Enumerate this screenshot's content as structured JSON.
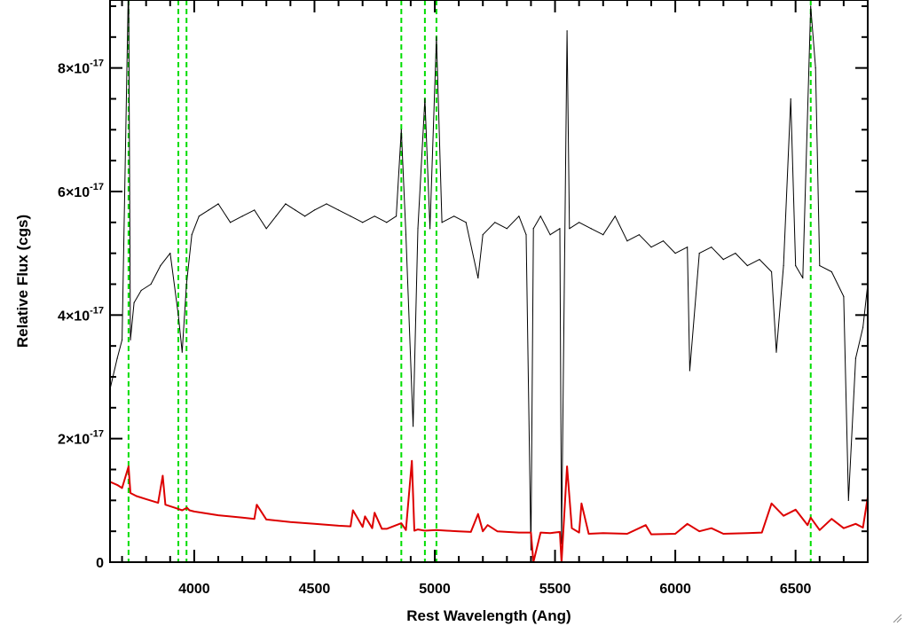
{
  "chart_data": {
    "type": "line",
    "title": "",
    "xlabel": "Rest Wavelength (Ang)",
    "ylabel": "Relative Flux (cgs)",
    "xlim": [
      3650,
      6800
    ],
    "ylim": [
      0,
      9.1e-17
    ],
    "x_ticks": [
      4000,
      4500,
      5000,
      5500,
      6000,
      6500
    ],
    "x_tick_labels": [
      "4000",
      "4500",
      "5000",
      "5500",
      "6000",
      "6500"
    ],
    "y_ticks": [
      0,
      2e-17,
      4e-17,
      6e-17,
      8e-17
    ],
    "y_tick_labels": [
      {
        "mantissa": "0",
        "exponent": ""
      },
      {
        "mantissa": "2×10",
        "exponent": "-17"
      },
      {
        "mantissa": "4×10",
        "exponent": "-17"
      },
      {
        "mantissa": "6×10",
        "exponent": "-17"
      },
      {
        "mantissa": "8×10",
        "exponent": "-17"
      }
    ],
    "grid": false,
    "legend": "none",
    "series": [
      {
        "color": "#000000",
        "x": [
          3650,
          3680,
          3700,
          3727,
          3735,
          3750,
          3780,
          3820,
          3860,
          3900,
          3934,
          3950,
          3968,
          3990,
          4020,
          4060,
          4100,
          4150,
          4200,
          4250,
          4300,
          4340,
          4380,
          4420,
          4460,
          4500,
          4550,
          4600,
          4650,
          4700,
          4750,
          4800,
          4840,
          4861,
          4880,
          4910,
          4930,
          4959,
          4980,
          5007,
          5030,
          5080,
          5130,
          5180,
          5200,
          5250,
          5300,
          5350,
          5380,
          5400,
          5410,
          5440,
          5480,
          5520,
          5527,
          5550,
          5560,
          5600,
          5650,
          5700,
          5750,
          5800,
          5850,
          5900,
          5950,
          6000,
          6050,
          6060,
          6100,
          6150,
          6200,
          6250,
          6300,
          6350,
          6400,
          6420,
          6450,
          6480,
          6500,
          6530,
          6563,
          6583,
          6600,
          6650,
          6700,
          6720,
          6750,
          6780,
          6800
        ],
        "y": [
          2.8e-17,
          3.3e-17,
          3.6e-17,
          9.5e-17,
          3.6e-17,
          4.2e-17,
          4.4e-17,
          4.5e-17,
          4.8e-17,
          5e-17,
          4e-17,
          3.4e-17,
          4.5e-17,
          5.3e-17,
          5.6e-17,
          5.7e-17,
          5.8e-17,
          5.5e-17,
          5.6e-17,
          5.7e-17,
          5.4e-17,
          5.6e-17,
          5.8e-17,
          5.7e-17,
          5.6e-17,
          5.7e-17,
          5.8e-17,
          5.7e-17,
          5.6e-17,
          5.5e-17,
          5.6e-17,
          5.5e-17,
          5.6e-17,
          7e-17,
          5.3e-17,
          2.2e-17,
          5.4e-17,
          7.5e-17,
          5.4e-17,
          8.5e-17,
          5.5e-17,
          5.6e-17,
          5.5e-17,
          4.6e-17,
          5.3e-17,
          5.5e-17,
          5.4e-17,
          5.6e-17,
          5.3e-17,
          2e-18,
          5.4e-17,
          5.6e-17,
          5.3e-17,
          5.4e-17,
          3e-18,
          8.6e-17,
          5.4e-17,
          5.5e-17,
          5.4e-17,
          5.3e-17,
          5.6e-17,
          5.2e-17,
          5.3e-17,
          5.1e-17,
          5.2e-17,
          5e-17,
          5.1e-17,
          3.1e-17,
          5e-17,
          5.1e-17,
          4.9e-17,
          5e-17,
          4.8e-17,
          4.9e-17,
          4.7e-17,
          3.4e-17,
          4.8e-17,
          7.5e-17,
          4.8e-17,
          4.6e-17,
          9e-17,
          8e-17,
          4.8e-17,
          4.7e-17,
          4.3e-17,
          1e-17,
          3.3e-17,
          3.8e-17,
          4.5e-17
        ]
      },
      {
        "color": "#dd0000",
        "x": [
          3650,
          3680,
          3700,
          3727,
          3735,
          3760,
          3800,
          3850,
          3869,
          3880,
          3920,
          3950,
          3970,
          3980,
          4000,
          4100,
          4200,
          4250,
          4260,
          4300,
          4400,
          4500,
          4600,
          4650,
          4660,
          4700,
          4710,
          4740,
          4750,
          4780,
          4800,
          4861,
          4880,
          4905,
          4915,
          4930,
          4959,
          5007,
          5050,
          5100,
          5150,
          5180,
          5200,
          5220,
          5260,
          5300,
          5350,
          5400,
          5410,
          5440,
          5480,
          5520,
          5527,
          5550,
          5570,
          5600,
          5610,
          5640,
          5700,
          5800,
          5877,
          5900,
          6000,
          6050,
          6100,
          6150,
          6200,
          6300,
          6360,
          6400,
          6450,
          6500,
          6550,
          6563,
          6600,
          6650,
          6700,
          6750,
          6780,
          6800
        ],
        "y": [
          1.3e-17,
          1.25e-17,
          1.2e-17,
          1.55e-17,
          1.12e-17,
          1.07e-17,
          1.02e-17,
          9.6e-18,
          1.4e-17,
          9.3e-18,
          8.8e-18,
          8.4e-18,
          8.8e-18,
          8.4e-18,
          8.2e-18,
          7.6e-18,
          7.2e-18,
          7e-18,
          9.3e-18,
          6.9e-18,
          6.5e-18,
          6.2e-18,
          5.9e-18,
          5.8e-18,
          8.4e-18,
          5.7e-18,
          7.4e-18,
          5.5e-18,
          8e-18,
          5.4e-18,
          5.4e-18,
          6.3e-18,
          5.2e-18,
          1.64e-17,
          5.1e-18,
          5.3e-18,
          5.1e-18,
          5.2e-18,
          5.1e-18,
          5e-18,
          4.9e-18,
          7.8e-18,
          5e-18,
          6e-18,
          5e-18,
          4.9e-18,
          4.8e-18,
          4.8e-18,
          0.0,
          4.8e-18,
          4.7e-18,
          4.9e-18,
          0.0,
          1.55e-17,
          5.5e-18,
          4.8e-18,
          9.5e-18,
          4.6e-18,
          4.7e-18,
          4.6e-18,
          6e-18,
          4.5e-18,
          4.6e-18,
          6.2e-18,
          5e-18,
          5.5e-18,
          4.6e-18,
          4.7e-18,
          4.8e-18,
          9.5e-18,
          7.5e-18,
          8.5e-18,
          6e-18,
          7.2e-18,
          5.2e-18,
          7e-18,
          5.5e-18,
          6.2e-18,
          5.6e-18,
          1.05e-17
        ]
      }
    ],
    "vertical_lines": {
      "color": "#00dd00",
      "style": "dashed",
      "x": [
        3727,
        3934,
        3968,
        4861,
        4959,
        5007,
        6563
      ]
    }
  }
}
